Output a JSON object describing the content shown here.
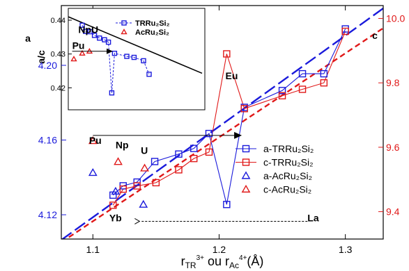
{
  "chart_data": {
    "type": "scatter",
    "colors": {
      "a": "#1a1adb",
      "c": "#e01818",
      "fit_a": "#1a1adb",
      "fit_c": "#e01818",
      "axis": "#000000"
    },
    "x_axis": {
      "range": [
        1.075,
        1.33
      ],
      "ticks": [
        1.1,
        1.2,
        1.3
      ],
      "tick_labels": [
        "1.1",
        "1.2",
        "1.3"
      ],
      "label_parts": {
        "r1": "r",
        "sub1": "TR",
        "sup1": "3+",
        "mid": " ou r",
        "sub2": "Ac",
        "sup2": "4+",
        "tail": "(Å)"
      }
    },
    "y_left": {
      "label": "a",
      "range": [
        4.107,
        4.232
      ],
      "ticks": [
        4.12,
        4.16,
        4.2
      ],
      "tick_labels": [
        "4.12",
        "4.16",
        "4.20"
      ]
    },
    "y_right": {
      "label": "c",
      "range": [
        9.315,
        10.04
      ],
      "ticks": [
        9.4,
        9.6,
        9.8,
        10.0
      ],
      "tick_labels": [
        "9.4",
        "9.6",
        "9.8",
        "10.0"
      ]
    },
    "series": [
      {
        "name": "a-TRRu₂Si₂",
        "axis": "left",
        "marker": "square",
        "line": true,
        "points": [
          [
            1.116,
            4.1305
          ],
          [
            1.124,
            4.1355
          ],
          [
            1.135,
            4.1375
          ],
          [
            1.149,
            4.1485
          ],
          [
            1.168,
            4.1525
          ],
          [
            1.18,
            4.1555
          ],
          [
            1.192,
            4.1635
          ],
          [
            1.206,
            4.1255
          ],
          [
            1.22,
            4.1775
          ],
          [
            1.25,
            4.1865
          ],
          [
            1.266,
            4.1955
          ],
          [
            1.283,
            4.1955
          ],
          [
            1.3,
            4.2195
          ]
        ]
      },
      {
        "name": "c-TRRu₂Si₂",
        "axis": "right",
        "marker": "square",
        "line": true,
        "points": [
          [
            1.116,
            9.42
          ],
          [
            1.124,
            9.47
          ],
          [
            1.135,
            9.48
          ],
          [
            1.15,
            9.49
          ],
          [
            1.168,
            9.53
          ],
          [
            1.18,
            9.565
          ],
          [
            1.192,
            9.585
          ],
          [
            1.206,
            9.89
          ],
          [
            1.22,
            9.72
          ],
          [
            1.25,
            9.76
          ],
          [
            1.266,
            9.78
          ],
          [
            1.283,
            9.8
          ],
          [
            1.3,
            9.96
          ]
        ]
      },
      {
        "name": "a-AcRu₂Si₂",
        "axis": "left",
        "marker": "triangle",
        "line": false,
        "points": [
          [
            1.1,
            4.1425
          ],
          [
            1.118,
            4.1325
          ],
          [
            1.14,
            4.1255
          ]
        ]
      },
      {
        "name": "c-AcRu₂Si₂",
        "axis": "right",
        "marker": "triangle",
        "line": false,
        "points": [
          [
            1.1,
            9.62
          ],
          [
            1.12,
            9.555
          ],
          [
            1.141,
            9.535
          ]
        ]
      }
    ],
    "fits": [
      {
        "series": "a",
        "axis": "left",
        "style": "long-dash",
        "from": [
          1.075,
          4.1065
        ],
        "to": [
          1.33,
          4.2305
        ]
      },
      {
        "series": "c",
        "axis": "right",
        "style": "dash",
        "from": [
          1.075,
          9.305
        ],
        "to": [
          1.33,
          9.97
        ]
      }
    ],
    "element_labels": [
      {
        "text": "Eu",
        "x": 1.205,
        "y": 4.1925,
        "axis": "left"
      },
      {
        "text": "Pu",
        "x": 1.097,
        "y": 4.158,
        "axis": "left"
      },
      {
        "text": "Np",
        "x": 1.118,
        "y": 4.1555,
        "axis": "left"
      },
      {
        "text": "U",
        "x": 1.138,
        "y": 4.1525,
        "axis": "left"
      },
      {
        "text": "Yb",
        "x": 1.113,
        "y": 4.1165,
        "axis": "left"
      },
      {
        "text": "La",
        "x": 1.27,
        "y": 4.1165,
        "axis": "left"
      }
    ],
    "arrows": [
      {
        "style": "solid",
        "from": [
          1.1,
          4.1625
        ],
        "to": [
          1.218,
          4.1625
        ],
        "axis": "left"
      },
      {
        "style": "dashed",
        "from": [
          1.27,
          4.1165
        ],
        "to": [
          1.137,
          4.1165
        ],
        "axis": "left"
      }
    ],
    "legend": {
      "placement": "right-center"
    },
    "inset": {
      "ylabel": "a/c",
      "x_range": [
        1.075,
        1.32
      ],
      "y_range": [
        0.4135,
        0.4435
      ],
      "ticks": [
        0.42,
        0.43,
        0.44
      ],
      "tick_labels": [
        "0.42",
        "0.43",
        "0.44"
      ],
      "legend": {
        "placement": "top-center"
      },
      "series": [
        {
          "name": "TRRu₂Si₂",
          "marker": "square",
          "line": true,
          "color": "#1a1adb",
          "points": [
            [
              1.1,
              0.4385
            ],
            [
              1.106,
              0.4367
            ],
            [
              1.114,
              0.4366
            ],
            [
              1.122,
              0.4355
            ],
            [
              1.131,
              0.4347
            ],
            [
              1.14,
              0.4342
            ],
            [
              1.147,
              0.4335
            ],
            [
              1.153,
              0.4185
            ],
            [
              1.158,
              0.4302
            ],
            [
              1.18,
              0.4293
            ],
            [
              1.193,
              0.429
            ],
            [
              1.21,
              0.428
            ],
            [
              1.22,
              0.424
            ]
          ]
        },
        {
          "name": "AcRu₂Si₂",
          "marker": "triangle",
          "line": false,
          "color": "#e01818",
          "points": [
            [
              1.085,
              0.4285
            ],
            [
              1.1,
              0.4302
            ],
            [
              1.113,
              0.4308
            ]
          ]
        }
      ],
      "fit": {
        "from": [
          1.075,
          0.441
        ],
        "to": [
          1.315,
          0.4243
        ]
      },
      "element_labels": [
        {
          "text": "Pu",
          "x": 1.082,
          "y": 0.4315
        },
        {
          "text": "NpU",
          "x": 1.093,
          "y": 0.4362
        }
      ],
      "arrow": {
        "from": [
          1.082,
          0.4308
        ],
        "to": [
          1.155,
          0.4308
        ]
      }
    }
  }
}
